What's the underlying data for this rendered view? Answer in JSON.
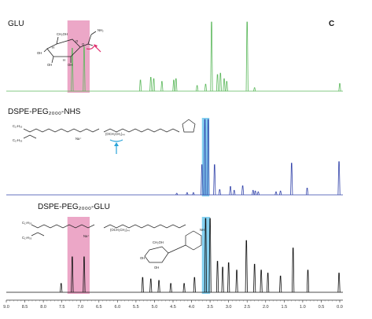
{
  "figure": {
    "panel_letter": "C",
    "structure_text": {
      "glu_ch2oh": "CH₂OH",
      "glu_nh2": "NH₂",
      "glu_oh": "OH",
      "glu_o": "O",
      "glu_h": "H",
      "nhs_c17a": "C₁₇H₃₅",
      "nhs_c17b": "C₁₇H₃₅",
      "na": "Na⁺",
      "peg": "(OCH₂CH₂)₄₄",
      "nh": "NH"
    }
  },
  "chart_data": [
    {
      "type": "line",
      "title": "GLU",
      "color": "#5cb85c",
      "x_axis_reversed": true,
      "xlim": [
        9.0,
        0.0
      ],
      "peaks": [
        {
          "ppm": 7.22,
          "height": 0.62
        },
        {
          "ppm": 6.9,
          "height": 0.64
        },
        {
          "ppm": 5.38,
          "height": 0.16
        },
        {
          "ppm": 5.1,
          "height": 0.2
        },
        {
          "ppm": 5.02,
          "height": 0.18
        },
        {
          "ppm": 4.8,
          "height": 0.14
        },
        {
          "ppm": 4.48,
          "height": 0.16
        },
        {
          "ppm": 4.42,
          "height": 0.18
        },
        {
          "ppm": 3.85,
          "height": 0.08
        },
        {
          "ppm": 3.62,
          "height": 0.1
        },
        {
          "ppm": 3.46,
          "height": 1.0
        },
        {
          "ppm": 3.3,
          "height": 0.24
        },
        {
          "ppm": 3.22,
          "height": 0.26
        },
        {
          "ppm": 3.12,
          "height": 0.18
        },
        {
          "ppm": 3.05,
          "height": 0.14
        },
        {
          "ppm": 2.5,
          "height": 1.0
        },
        {
          "ppm": 2.3,
          "height": 0.05
        },
        {
          "ppm": 0.0,
          "height": 0.11
        }
      ],
      "highlights": [
        {
          "from": 7.35,
          "to": 6.75,
          "color": "#e58ab4"
        }
      ]
    },
    {
      "type": "line",
      "title": "DSPE-PEG₂₀₀₀-NHS",
      "color": "#3344aa",
      "x_axis_reversed": true,
      "xlim": [
        9.0,
        0.0
      ],
      "peaks": [
        {
          "ppm": 4.4,
          "height": 0.02
        },
        {
          "ppm": 4.12,
          "height": 0.03
        },
        {
          "ppm": 3.95,
          "height": 0.03
        },
        {
          "ppm": 3.72,
          "height": 0.4
        },
        {
          "ppm": 3.64,
          "height": 1.0
        },
        {
          "ppm": 3.55,
          "height": 1.0
        },
        {
          "ppm": 3.38,
          "height": 0.4
        },
        {
          "ppm": 3.24,
          "height": 0.07
        },
        {
          "ppm": 2.95,
          "height": 0.11
        },
        {
          "ppm": 2.85,
          "height": 0.06
        },
        {
          "ppm": 2.62,
          "height": 0.12
        },
        {
          "ppm": 2.34,
          "height": 0.06
        },
        {
          "ppm": 2.28,
          "height": 0.05
        },
        {
          "ppm": 2.2,
          "height": 0.04
        },
        {
          "ppm": 1.72,
          "height": 0.04
        },
        {
          "ppm": 1.6,
          "height": 0.05
        },
        {
          "ppm": 1.3,
          "height": 0.42
        },
        {
          "ppm": 0.88,
          "height": 0.09
        },
        {
          "ppm": 0.02,
          "height": 0.44
        }
      ],
      "highlights": [
        {
          "from": 3.72,
          "to": 3.52,
          "color": "#5bc0eb"
        }
      ]
    },
    {
      "type": "line",
      "title": "DSPE-PEG₂₀₀₀-GLU",
      "color": "#111111",
      "x_axis_reversed": true,
      "xlim": [
        9.0,
        0.0
      ],
      "x_ticks": [
        "9.0",
        "8.5",
        "8.0",
        "7.5",
        "7.0",
        "6.5",
        "6.0",
        "5.5",
        "5.0",
        "4.5",
        "4.0",
        "3.5",
        "3.0",
        "2.5",
        "2.0",
        "1.5",
        "1.0",
        "0.5",
        "0.0"
      ],
      "peaks": [
        {
          "ppm": 7.52,
          "height": 0.12
        },
        {
          "ppm": 7.22,
          "height": 0.48
        },
        {
          "ppm": 6.9,
          "height": 0.48
        },
        {
          "ppm": 5.32,
          "height": 0.2
        },
        {
          "ppm": 5.1,
          "height": 0.18
        },
        {
          "ppm": 4.88,
          "height": 0.16
        },
        {
          "ppm": 4.56,
          "height": 0.12
        },
        {
          "ppm": 4.2,
          "height": 0.12
        },
        {
          "ppm": 3.92,
          "height": 0.2
        },
        {
          "ppm": 3.62,
          "height": 1.0
        },
        {
          "ppm": 3.5,
          "height": 1.0
        },
        {
          "ppm": 3.3,
          "height": 0.42
        },
        {
          "ppm": 3.16,
          "height": 0.34
        },
        {
          "ppm": 3.0,
          "height": 0.4
        },
        {
          "ppm": 2.78,
          "height": 0.3
        },
        {
          "ppm": 2.52,
          "height": 0.7
        },
        {
          "ppm": 2.3,
          "height": 0.38
        },
        {
          "ppm": 2.12,
          "height": 0.3
        },
        {
          "ppm": 1.94,
          "height": 0.26
        },
        {
          "ppm": 1.6,
          "height": 0.22
        },
        {
          "ppm": 1.26,
          "height": 0.6
        },
        {
          "ppm": 0.86,
          "height": 0.3
        },
        {
          "ppm": 0.02,
          "height": 0.26
        }
      ],
      "highlights": [
        {
          "from": 7.35,
          "to": 6.75,
          "color": "#e58ab4"
        },
        {
          "from": 3.72,
          "to": 3.5,
          "color": "#5bc0eb"
        }
      ]
    }
  ]
}
